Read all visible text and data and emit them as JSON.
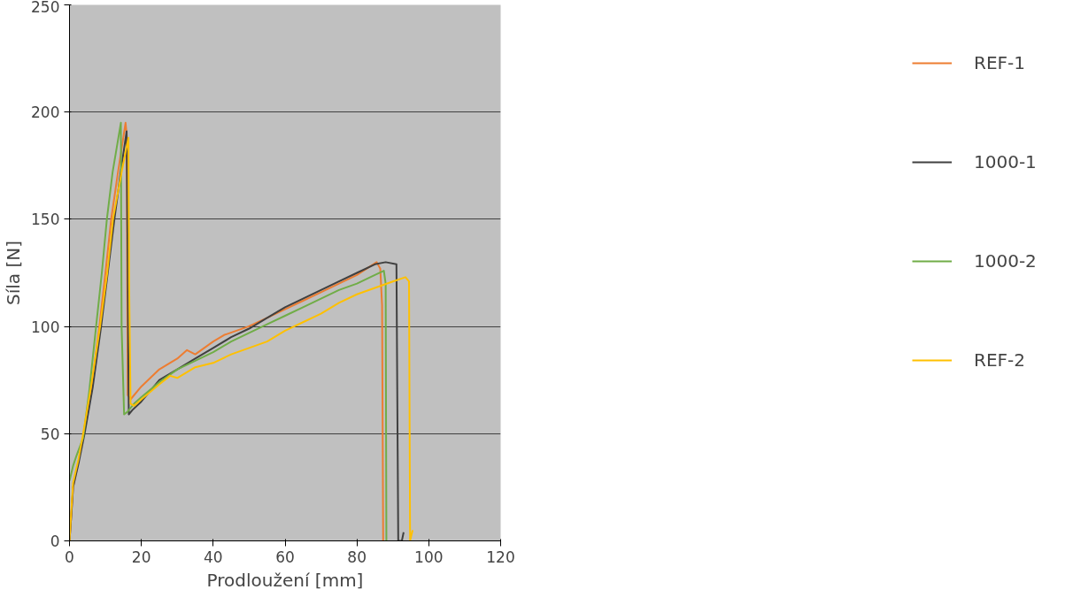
{
  "chart_data": {
    "type": "line",
    "xlabel": "Prodloužení [mm]",
    "ylabel": "Síla [N]",
    "xlim": [
      0,
      120
    ],
    "xticks": [
      0,
      20,
      40,
      60,
      80,
      100,
      120
    ],
    "ylim": [
      0,
      250
    ],
    "yticks": [
      0,
      50,
      100,
      150,
      200,
      250
    ],
    "grid": "y",
    "legend": "right",
    "marker": "none",
    "line_style": "solid",
    "series": [
      {
        "name": "REF-1",
        "color": "#ed7d31",
        "x": [
          0,
          0.5,
          1,
          2.5,
          4,
          6,
          8.3,
          10,
          11.6,
          13.5,
          15.6,
          15.9,
          16.2,
          17,
          20,
          25,
          30,
          32.7,
          35,
          40,
          43,
          49.8,
          55,
          60,
          65,
          70,
          75,
          80,
          85.5,
          86.5,
          87,
          87.3
        ],
        "values": [
          0,
          12,
          25,
          37,
          50,
          70,
          100,
          125,
          150,
          172,
          195,
          190,
          68,
          66,
          72,
          80,
          85,
          89,
          87,
          93,
          96,
          100,
          104,
          108,
          112,
          116,
          120,
          124,
          130,
          127,
          110,
          0
        ]
      },
      {
        "name": "1000-1",
        "color": "#404040",
        "x": [
          0,
          0.5,
          1,
          2.5,
          4.2,
          6.5,
          8.8,
          10.5,
          12.5,
          14.5,
          15.9,
          16.2,
          16.5,
          17.5,
          20,
          25,
          30,
          35,
          40,
          45,
          50,
          55,
          60,
          65,
          70,
          75,
          80,
          85,
          88,
          91,
          91.5,
          92.5,
          93
        ],
        "values": [
          0,
          12,
          25,
          36,
          50,
          72,
          100,
          123,
          150,
          175,
          191,
          130,
          59,
          61,
          65,
          75,
          80,
          85,
          90,
          95,
          99,
          104,
          109,
          113,
          117,
          121,
          125,
          129,
          130,
          129,
          0,
          0,
          4
        ]
      },
      {
        "name": "1000-2",
        "color": "#70ad47",
        "x": [
          0,
          1,
          2,
          3.8,
          5.5,
          7.4,
          9,
          10.4,
          12,
          14.3,
          14.5,
          15.2,
          16,
          18,
          20,
          25,
          30,
          35,
          40,
          45,
          50,
          55,
          60,
          65,
          70,
          75,
          80,
          85,
          87.5,
          88,
          88.2
        ],
        "values": [
          28,
          35,
          40,
          48,
          70,
          100,
          125,
          150,
          172,
          195,
          100,
          59,
          60,
          64,
          67,
          74,
          80,
          84,
          88,
          93,
          97,
          101,
          105,
          109,
          113,
          117,
          120,
          124,
          126,
          120,
          0
        ]
      },
      {
        "name": "REF-2",
        "color": "#ffc000",
        "x": [
          0,
          0.5,
          1,
          2.5,
          3.8,
          6,
          8.5,
          10.5,
          12.1,
          14.5,
          16.4,
          16.6,
          17,
          18,
          20,
          25,
          28,
          30,
          35,
          40,
          45,
          50,
          55,
          60,
          65,
          70,
          75,
          80,
          85,
          90,
          93.5,
          94.5,
          94.8,
          95.5
        ],
        "values": [
          0,
          14,
          27,
          38,
          50,
          72,
          100,
          125,
          150,
          172,
          188,
          120,
          64,
          63,
          66,
          73,
          77,
          76,
          81,
          83,
          87,
          90,
          93,
          98,
          102,
          106,
          111,
          115,
          118,
          121,
          123,
          121,
          0,
          5
        ]
      }
    ]
  }
}
